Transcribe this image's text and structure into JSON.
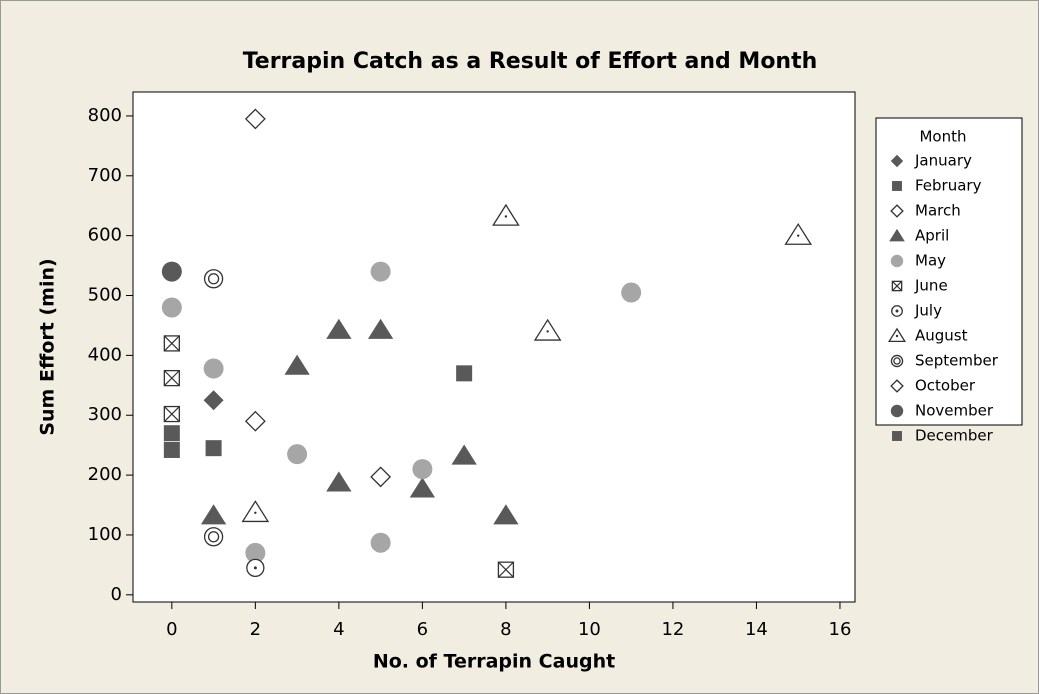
{
  "chart_data": {
    "type": "scatter",
    "title": "Terrapin Catch as a Result of Effort and Month",
    "x_label": "No. of Terrapin Caught",
    "y_label": "Sum Effort (min)",
    "legend_title": "Month",
    "legend_position": "right",
    "xlim": [
      -0.93,
      16.36
    ],
    "ylim": [
      -12,
      840
    ],
    "xticks": [
      0,
      2,
      4,
      6,
      8,
      10,
      12,
      14,
      16
    ],
    "yticks": [
      0,
      100,
      200,
      300,
      400,
      500,
      600,
      700,
      800
    ],
    "series": [
      {
        "name": "January",
        "color": "#595959",
        "marker": "diamond",
        "x": [
          1
        ],
        "y": [
          325
        ]
      },
      {
        "name": "February",
        "color": "#595959",
        "marker": "square",
        "x": [
          0,
          1
        ],
        "y": [
          270,
          245
        ]
      },
      {
        "name": "March",
        "color": "#333333",
        "marker": "diamond-open",
        "x": [
          2,
          5
        ],
        "y": [
          795,
          197
        ]
      },
      {
        "name": "April",
        "color": "#595959",
        "marker": "triangle",
        "x": [
          1,
          3,
          4,
          5,
          4,
          6,
          7,
          8
        ],
        "y": [
          132,
          382,
          442,
          442,
          187,
          177,
          232,
          132
        ]
      },
      {
        "name": "May",
        "color": "#a6a6a6",
        "marker": "circle",
        "x": [
          0,
          1,
          3,
          5,
          6,
          2,
          5,
          11
        ],
        "y": [
          480,
          378,
          235,
          540,
          210,
          70,
          87,
          505
        ]
      },
      {
        "name": "June",
        "color": "#333333",
        "marker": "square-x",
        "x": [
          0,
          0,
          0,
          8
        ],
        "y": [
          420,
          362,
          302,
          42
        ]
      },
      {
        "name": "July",
        "color": "#333333",
        "marker": "circle-dot",
        "x": [
          2,
          1
        ],
        "y": [
          45,
          97
        ]
      },
      {
        "name": "August",
        "color": "#333333",
        "marker": "triangle-dot",
        "x": [
          2,
          8,
          9,
          15
        ],
        "y": [
          137,
          632,
          440,
          600
        ]
      },
      {
        "name": "September",
        "color": "#333333",
        "marker": "circle-double",
        "x": [
          1,
          1
        ],
        "y": [
          528,
          97
        ]
      },
      {
        "name": "October",
        "color": "#333333",
        "marker": "diamond-open",
        "x": [
          2
        ],
        "y": [
          290
        ]
      },
      {
        "name": "November",
        "color": "#595959",
        "marker": "circle",
        "x": [
          0
        ],
        "y": [
          540
        ]
      },
      {
        "name": "December",
        "color": "#595959",
        "marker": "square",
        "x": [
          0,
          7
        ],
        "y": [
          242,
          370
        ]
      }
    ]
  }
}
